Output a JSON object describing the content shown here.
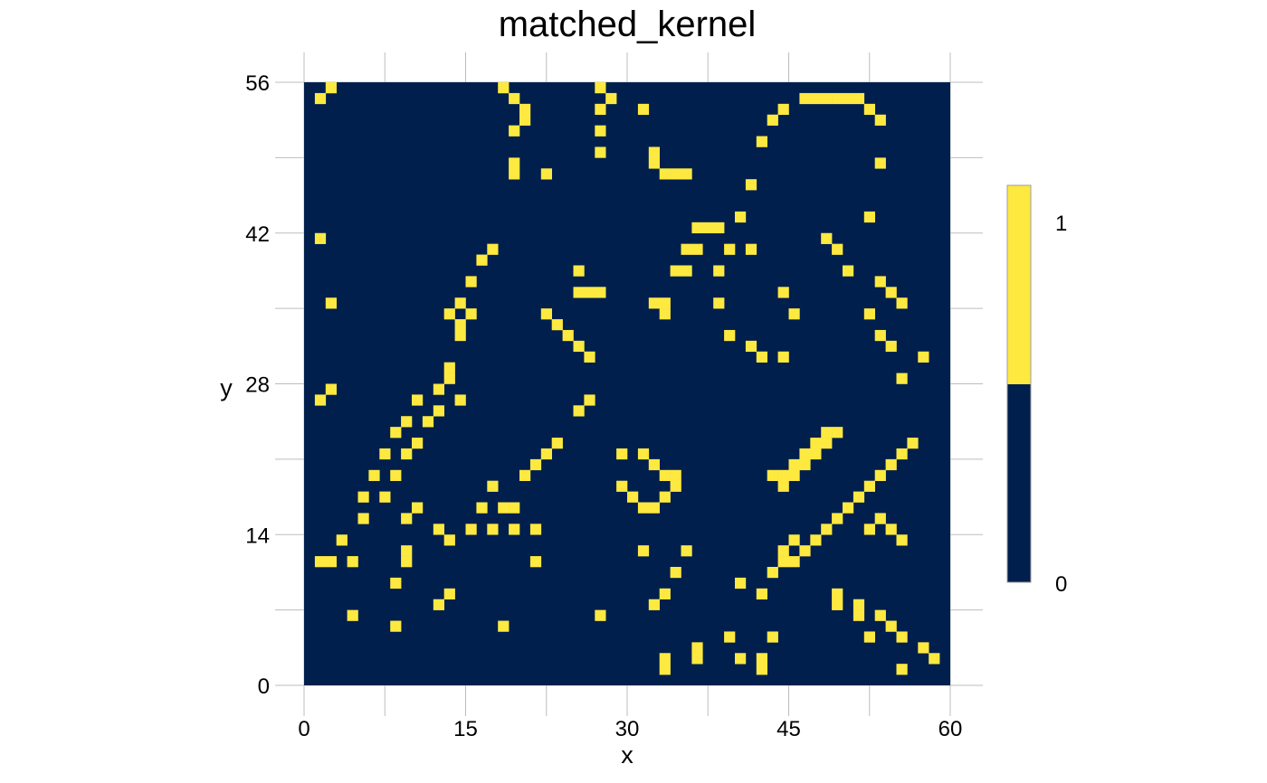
{
  "chart_data": {
    "type": "heatmap",
    "title": "matched_kernel",
    "xlabel": "x",
    "ylabel": "y",
    "xlim": [
      0,
      60
    ],
    "ylim": [
      0,
      56
    ],
    "x_ticks": [
      "0",
      "15",
      "30",
      "45",
      "60"
    ],
    "y_ticks": [
      "0",
      "14",
      "28",
      "42",
      "56"
    ],
    "colorbar": {
      "ticks": [
        "0",
        "1"
      ],
      "low_color": "#001f4d",
      "high_color": "#fde940"
    },
    "grid": true,
    "legend_position": "right",
    "background_color": "#001f4d",
    "cell_color": "#fde940",
    "cells": [
      [
        1,
        54
      ],
      [
        2,
        55
      ],
      [
        18,
        55
      ],
      [
        19,
        54
      ],
      [
        20,
        53
      ],
      [
        20,
        52
      ],
      [
        19,
        51
      ],
      [
        19,
        48
      ],
      [
        19,
        47
      ],
      [
        22,
        47
      ],
      [
        27,
        55
      ],
      [
        28,
        54
      ],
      [
        27,
        53
      ],
      [
        27,
        51
      ],
      [
        27,
        49
      ],
      [
        31,
        53
      ],
      [
        32,
        49
      ],
      [
        32,
        48
      ],
      [
        33,
        47
      ],
      [
        34,
        47
      ],
      [
        35,
        47
      ],
      [
        40,
        43
      ],
      [
        41,
        46
      ],
      [
        42,
        50
      ],
      [
        43,
        52
      ],
      [
        44,
        53
      ],
      [
        46,
        54
      ],
      [
        47,
        54
      ],
      [
        48,
        54
      ],
      [
        49,
        54
      ],
      [
        50,
        54
      ],
      [
        51,
        54
      ],
      [
        52,
        53
      ],
      [
        53,
        52
      ],
      [
        53,
        48
      ],
      [
        52,
        43
      ],
      [
        36,
        42
      ],
      [
        37,
        42
      ],
      [
        38,
        42
      ],
      [
        35,
        40
      ],
      [
        36,
        40
      ],
      [
        39,
        40
      ],
      [
        34,
        38
      ],
      [
        35,
        38
      ],
      [
        38,
        38
      ],
      [
        41,
        40
      ],
      [
        48,
        41
      ],
      [
        49,
        40
      ],
      [
        50,
        38
      ],
      [
        53,
        37
      ],
      [
        54,
        36
      ],
      [
        55,
        35
      ],
      [
        38,
        35
      ],
      [
        39,
        32
      ],
      [
        41,
        31
      ],
      [
        42,
        30
      ],
      [
        44,
        36
      ],
      [
        45,
        34
      ],
      [
        44,
        30
      ],
      [
        52,
        34
      ],
      [
        53,
        32
      ],
      [
        54,
        31
      ],
      [
        55,
        28
      ],
      [
        57,
        30
      ],
      [
        56,
        22
      ],
      [
        55,
        21
      ],
      [
        54,
        20
      ],
      [
        53,
        19
      ],
      [
        52,
        18
      ],
      [
        51,
        17
      ],
      [
        50,
        16
      ],
      [
        49,
        15
      ],
      [
        48,
        14
      ],
      [
        47,
        13
      ],
      [
        46,
        12
      ],
      [
        45,
        11
      ],
      [
        44,
        11
      ],
      [
        43,
        10
      ],
      [
        40,
        9
      ],
      [
        42,
        8
      ],
      [
        44,
        12
      ],
      [
        45,
        13
      ],
      [
        52,
        14
      ],
      [
        53,
        15
      ],
      [
        54,
        14
      ],
      [
        55,
        13
      ],
      [
        49,
        23
      ],
      [
        48,
        23
      ],
      [
        47,
        22
      ],
      [
        48,
        22
      ],
      [
        46,
        21
      ],
      [
        47,
        21
      ],
      [
        45,
        20
      ],
      [
        46,
        20
      ],
      [
        44,
        19
      ],
      [
        45,
        19
      ],
      [
        44,
        18
      ],
      [
        43,
        19
      ],
      [
        1,
        41
      ],
      [
        2,
        35
      ],
      [
        1,
        26
      ],
      [
        2,
        27
      ],
      [
        17,
        40
      ],
      [
        16,
        39
      ],
      [
        15,
        37
      ],
      [
        14,
        35
      ],
      [
        13,
        34
      ],
      [
        15,
        34
      ],
      [
        14,
        33
      ],
      [
        14,
        32
      ],
      [
        13,
        29
      ],
      [
        13,
        28
      ],
      [
        12,
        27
      ],
      [
        10,
        26
      ],
      [
        14,
        26
      ],
      [
        12,
        25
      ],
      [
        11,
        24
      ],
      [
        9,
        24
      ],
      [
        8,
        23
      ],
      [
        10,
        22
      ],
      [
        9,
        21
      ],
      [
        7,
        21
      ],
      [
        6,
        19
      ],
      [
        8,
        19
      ],
      [
        5,
        17
      ],
      [
        7,
        17
      ],
      [
        10,
        16
      ],
      [
        9,
        15
      ],
      [
        5,
        15
      ],
      [
        12,
        14
      ],
      [
        13,
        13
      ],
      [
        15,
        14
      ],
      [
        16,
        16
      ],
      [
        17,
        18
      ],
      [
        18,
        16
      ],
      [
        19,
        16
      ],
      [
        20,
        19
      ],
      [
        21,
        20
      ],
      [
        22,
        21
      ],
      [
        23,
        22
      ],
      [
        25,
        25
      ],
      [
        26,
        26
      ],
      [
        26,
        30
      ],
      [
        25,
        31
      ],
      [
        24,
        32
      ],
      [
        23,
        33
      ],
      [
        22,
        34
      ],
      [
        25,
        38
      ],
      [
        25,
        36
      ],
      [
        26,
        36
      ],
      [
        27,
        36
      ],
      [
        32,
        35
      ],
      [
        33,
        35
      ],
      [
        33,
        34
      ],
      [
        17,
        14
      ],
      [
        19,
        14
      ],
      [
        21,
        14
      ],
      [
        3,
        13
      ],
      [
        1,
        11
      ],
      [
        2,
        11
      ],
      [
        4,
        11
      ],
      [
        9,
        12
      ],
      [
        9,
        11
      ],
      [
        8,
        9
      ],
      [
        4,
        6
      ],
      [
        8,
        5
      ],
      [
        18,
        5
      ],
      [
        12,
        7
      ],
      [
        13,
        8
      ],
      [
        21,
        11
      ],
      [
        27,
        6
      ],
      [
        29,
        21
      ],
      [
        31,
        21
      ],
      [
        32,
        20
      ],
      [
        33,
        19
      ],
      [
        34,
        19
      ],
      [
        34,
        18
      ],
      [
        29,
        18
      ],
      [
        30,
        17
      ],
      [
        31,
        16
      ],
      [
        32,
        16
      ],
      [
        33,
        17
      ],
      [
        31,
        12
      ],
      [
        35,
        12
      ],
      [
        34,
        10
      ],
      [
        33,
        8
      ],
      [
        32,
        7
      ],
      [
        33,
        2
      ],
      [
        33,
        1
      ],
      [
        36,
        3
      ],
      [
        36,
        2
      ],
      [
        39,
        4
      ],
      [
        40,
        2
      ],
      [
        42,
        2
      ],
      [
        42,
        1
      ],
      [
        43,
        4
      ],
      [
        49,
        8
      ],
      [
        49,
        7
      ],
      [
        51,
        7
      ],
      [
        51,
        6
      ],
      [
        53,
        6
      ],
      [
        54,
        5
      ],
      [
        52,
        4
      ],
      [
        55,
        4
      ],
      [
        57,
        3
      ],
      [
        58,
        2
      ],
      [
        55,
        1
      ]
    ]
  }
}
